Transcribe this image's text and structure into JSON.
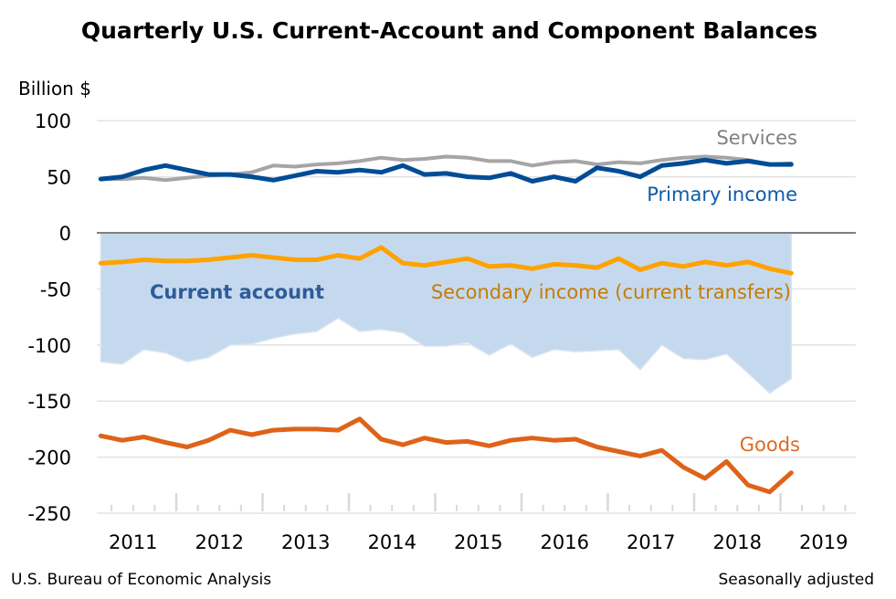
{
  "chart_data": {
    "type": "line",
    "title": "Quarterly U.S. Current-Account and Component Balances",
    "ylabel": "Billion $",
    "ylim": [
      -250,
      100
    ],
    "yticks": [
      "100",
      "50",
      "0",
      "-50",
      "-100",
      "-150",
      "-200",
      "-250"
    ],
    "ytick_values": [
      100,
      50,
      0,
      -50,
      -100,
      -150,
      -200,
      -250
    ],
    "xtick_labels": [
      "2011",
      "2012",
      "2013",
      "2014",
      "2015",
      "2016",
      "2017",
      "2018",
      "2019"
    ],
    "x": [
      "2011 Q1",
      "2011 Q2",
      "2011 Q3",
      "2011 Q4",
      "2012 Q1",
      "2012 Q2",
      "2012 Q3",
      "2012 Q4",
      "2013 Q1",
      "2013 Q2",
      "2013 Q3",
      "2013 Q4",
      "2014 Q1",
      "2014 Q2",
      "2014 Q3",
      "2014 Q4",
      "2015 Q1",
      "2015 Q2",
      "2015 Q3",
      "2015 Q4",
      "2016 Q1",
      "2016 Q2",
      "2016 Q3",
      "2016 Q4",
      "2017 Q1",
      "2017 Q2",
      "2017 Q3",
      "2017 Q4",
      "2018 Q1",
      "2018 Q2",
      "2018 Q3",
      "2018 Q4",
      "2019 Q1"
    ],
    "grid": true,
    "series": [
      {
        "name": "Current account",
        "kind": "area",
        "color": "#C5D9EE",
        "label_color": "#2E5C9A",
        "values": [
          -115,
          -117,
          -104,
          -107,
          -115,
          -111,
          -100,
          -99,
          -94,
          -90,
          -88,
          -76,
          -88,
          -86,
          -89,
          -101,
          -101,
          -98,
          -109,
          -99,
          -111,
          -104,
          -106,
          -105,
          -104,
          -122,
          -100,
          -112,
          -113,
          -108,
          -125,
          -143,
          -130
        ]
      },
      {
        "name": "Services",
        "kind": "line",
        "color": "#A5A5A5",
        "label_color": "#7F7F7F",
        "values": [
          48,
          48,
          49,
          47,
          49,
          51,
          52,
          54,
          60,
          59,
          61,
          62,
          64,
          67,
          65,
          66,
          68,
          67,
          64,
          64,
          60,
          63,
          64,
          61,
          63,
          62,
          65,
          67,
          68,
          67,
          65,
          61,
          62
        ]
      },
      {
        "name": "Primary income",
        "kind": "line",
        "color": "#004C97",
        "label_color": "#0F5BA7",
        "values": [
          48,
          50,
          56,
          60,
          56,
          52,
          52,
          50,
          47,
          51,
          55,
          54,
          56,
          54,
          60,
          52,
          53,
          50,
          49,
          53,
          46,
          50,
          46,
          58,
          55,
          50,
          60,
          62,
          65,
          62,
          64,
          61,
          61
        ]
      },
      {
        "name": "Secondary income (current transfers)",
        "kind": "line",
        "color": "#FFA200",
        "label_color": "#C67B00",
        "values": [
          -27,
          -26,
          -24,
          -25,
          -25,
          -24,
          -22,
          -20,
          -22,
          -24,
          -24,
          -20,
          -23,
          -13,
          -27,
          -29,
          -26,
          -23,
          -30,
          -29,
          -32,
          -28,
          -29,
          -31,
          -23,
          -33,
          -27,
          -30,
          -26,
          -29,
          -26,
          -32,
          -36
        ]
      },
      {
        "name": "Goods",
        "kind": "line",
        "color": "#DE6319",
        "label_color": "#DD6B20",
        "values": [
          -181,
          -185,
          -182,
          -187,
          -191,
          -185,
          -176,
          -180,
          -176,
          -175,
          -175,
          -176,
          -166,
          -184,
          -189,
          -183,
          -187,
          -186,
          -190,
          -185,
          -183,
          -185,
          -184,
          -191,
          -195,
          -199,
          -194,
          -209,
          -219,
          -204,
          -225,
          -231,
          -214
        ]
      }
    ]
  },
  "footer": {
    "source": "U.S. Bureau of Economic Analysis",
    "note": "Seasonally adjusted"
  }
}
